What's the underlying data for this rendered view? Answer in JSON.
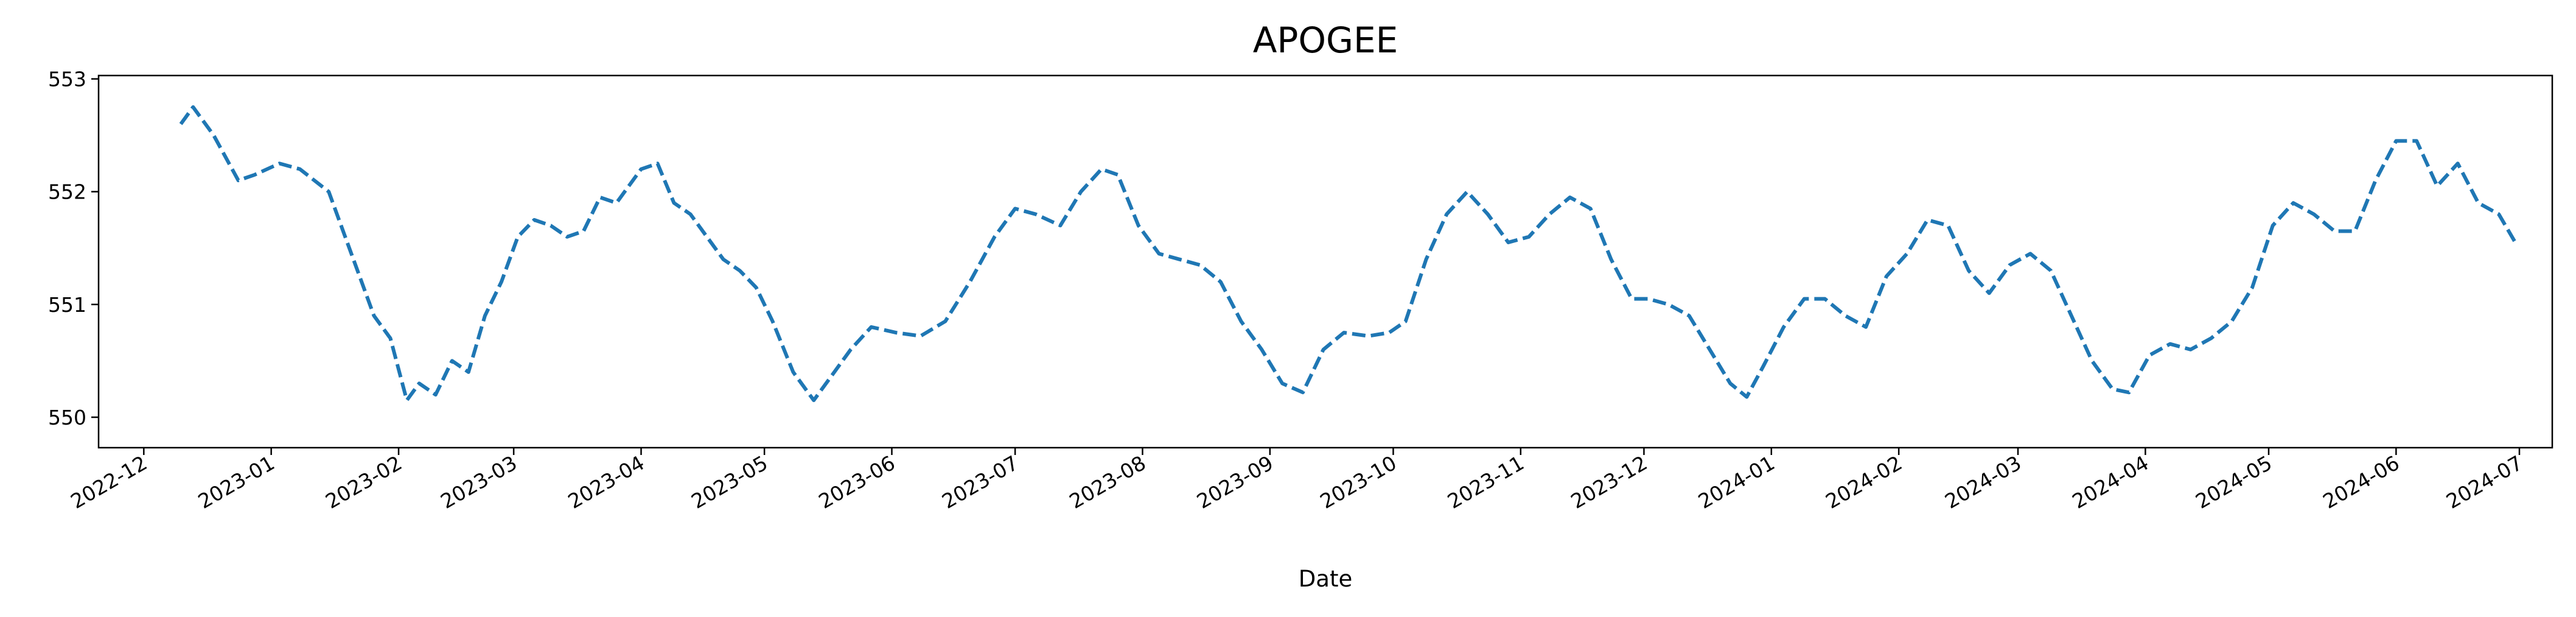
{
  "chart_data": {
    "type": "line",
    "title": "APOGEE",
    "xlabel": "Date",
    "ylabel": "",
    "x_range": [
      "2022-11-20",
      "2024-07-09"
    ],
    "ylim": [
      549.73,
      553.03
    ],
    "grid": false,
    "legend": "none",
    "line_style": "dashed",
    "x_ticks": [
      "2022-12",
      "2023-01",
      "2023-02",
      "2023-03",
      "2023-04",
      "2023-05",
      "2023-06",
      "2023-07",
      "2023-08",
      "2023-09",
      "2023-10",
      "2023-11",
      "2023-12",
      "2024-01",
      "2024-02",
      "2024-03",
      "2024-04",
      "2024-05",
      "2024-06",
      "2024-07"
    ],
    "y_ticks": [
      550,
      551,
      552,
      553
    ],
    "series": [
      {
        "color": "#1f77b4",
        "x": [
          "2022-12-10",
          "2022-12-13",
          "2022-12-18",
          "2022-12-24",
          "2022-12-28",
          "2023-01-03",
          "2023-01-08",
          "2023-01-15",
          "2023-01-22",
          "2023-01-26",
          "2023-01-30",
          "2023-02-03",
          "2023-02-06",
          "2023-02-10",
          "2023-02-14",
          "2023-02-18",
          "2023-02-22",
          "2023-02-26",
          "2023-03-02",
          "2023-03-06",
          "2023-03-10",
          "2023-03-14",
          "2023-03-18",
          "2023-03-22",
          "2023-03-26",
          "2023-04-01",
          "2023-04-05",
          "2023-04-09",
          "2023-04-13",
          "2023-04-17",
          "2023-04-21",
          "2023-04-25",
          "2023-04-29",
          "2023-05-03",
          "2023-05-08",
          "2023-05-13",
          "2023-05-17",
          "2023-05-22",
          "2023-05-27",
          "2023-06-02",
          "2023-06-08",
          "2023-06-14",
          "2023-06-20",
          "2023-06-26",
          "2023-07-01",
          "2023-07-06",
          "2023-07-12",
          "2023-07-17",
          "2023-07-22",
          "2023-07-26",
          "2023-07-31",
          "2023-08-05",
          "2023-08-10",
          "2023-08-15",
          "2023-08-20",
          "2023-08-25",
          "2023-08-30",
          "2023-09-04",
          "2023-09-09",
          "2023-09-14",
          "2023-09-19",
          "2023-09-25",
          "2023-09-30",
          "2023-10-04",
          "2023-10-09",
          "2023-10-14",
          "2023-10-19",
          "2023-10-24",
          "2023-10-29",
          "2023-11-03",
          "2023-11-08",
          "2023-11-13",
          "2023-11-18",
          "2023-11-23",
          "2023-11-28",
          "2023-12-02",
          "2023-12-07",
          "2023-12-12",
          "2023-12-17",
          "2023-12-22",
          "2023-12-26",
          "2023-12-30",
          "2024-01-04",
          "2024-01-09",
          "2024-01-14",
          "2024-01-19",
          "2024-01-24",
          "2024-01-29",
          "2024-02-03",
          "2024-02-08",
          "2024-02-13",
          "2024-02-18",
          "2024-02-23",
          "2024-02-28",
          "2024-03-04",
          "2024-03-09",
          "2024-03-14",
          "2024-03-19",
          "2024-03-24",
          "2024-03-28",
          "2024-04-02",
          "2024-04-07",
          "2024-04-12",
          "2024-04-17",
          "2024-04-22",
          "2024-04-27",
          "2024-05-02",
          "2024-05-07",
          "2024-05-12",
          "2024-05-17",
          "2024-05-22",
          "2024-05-27",
          "2024-06-01",
          "2024-06-06",
          "2024-06-11",
          "2024-06-16",
          "2024-06-21",
          "2024-06-26",
          "2024-06-30"
        ],
        "y": [
          552.6,
          552.75,
          552.5,
          552.1,
          552.15,
          552.25,
          552.2,
          552.0,
          551.3,
          550.9,
          550.7,
          550.15,
          550.3,
          550.2,
          550.5,
          550.4,
          550.9,
          551.2,
          551.6,
          551.75,
          551.7,
          551.6,
          551.65,
          551.95,
          551.9,
          552.2,
          552.25,
          551.9,
          551.8,
          551.6,
          551.4,
          551.3,
          551.15,
          550.85,
          550.4,
          550.15,
          550.35,
          550.6,
          550.8,
          550.75,
          550.72,
          550.85,
          551.2,
          551.6,
          551.85,
          551.8,
          551.7,
          552.0,
          552.2,
          552.15,
          551.7,
          551.45,
          551.4,
          551.35,
          551.2,
          550.85,
          550.6,
          550.3,
          550.22,
          550.6,
          550.75,
          550.72,
          550.75,
          550.85,
          551.4,
          551.8,
          552.0,
          551.8,
          551.55,
          551.6,
          551.8,
          551.95,
          551.85,
          551.4,
          551.05,
          551.05,
          551.0,
          550.9,
          550.6,
          550.3,
          550.18,
          550.45,
          550.8,
          551.05,
          551.05,
          550.9,
          550.8,
          551.25,
          551.45,
          551.75,
          551.7,
          551.3,
          551.1,
          551.35,
          551.45,
          551.3,
          550.9,
          550.5,
          550.25,
          550.22,
          550.55,
          550.65,
          550.6,
          550.7,
          550.85,
          551.15,
          551.7,
          551.9,
          551.8,
          551.65,
          551.65,
          552.1,
          552.45,
          552.45,
          552.05,
          552.25,
          551.9,
          551.8,
          551.55
        ]
      }
    ]
  }
}
